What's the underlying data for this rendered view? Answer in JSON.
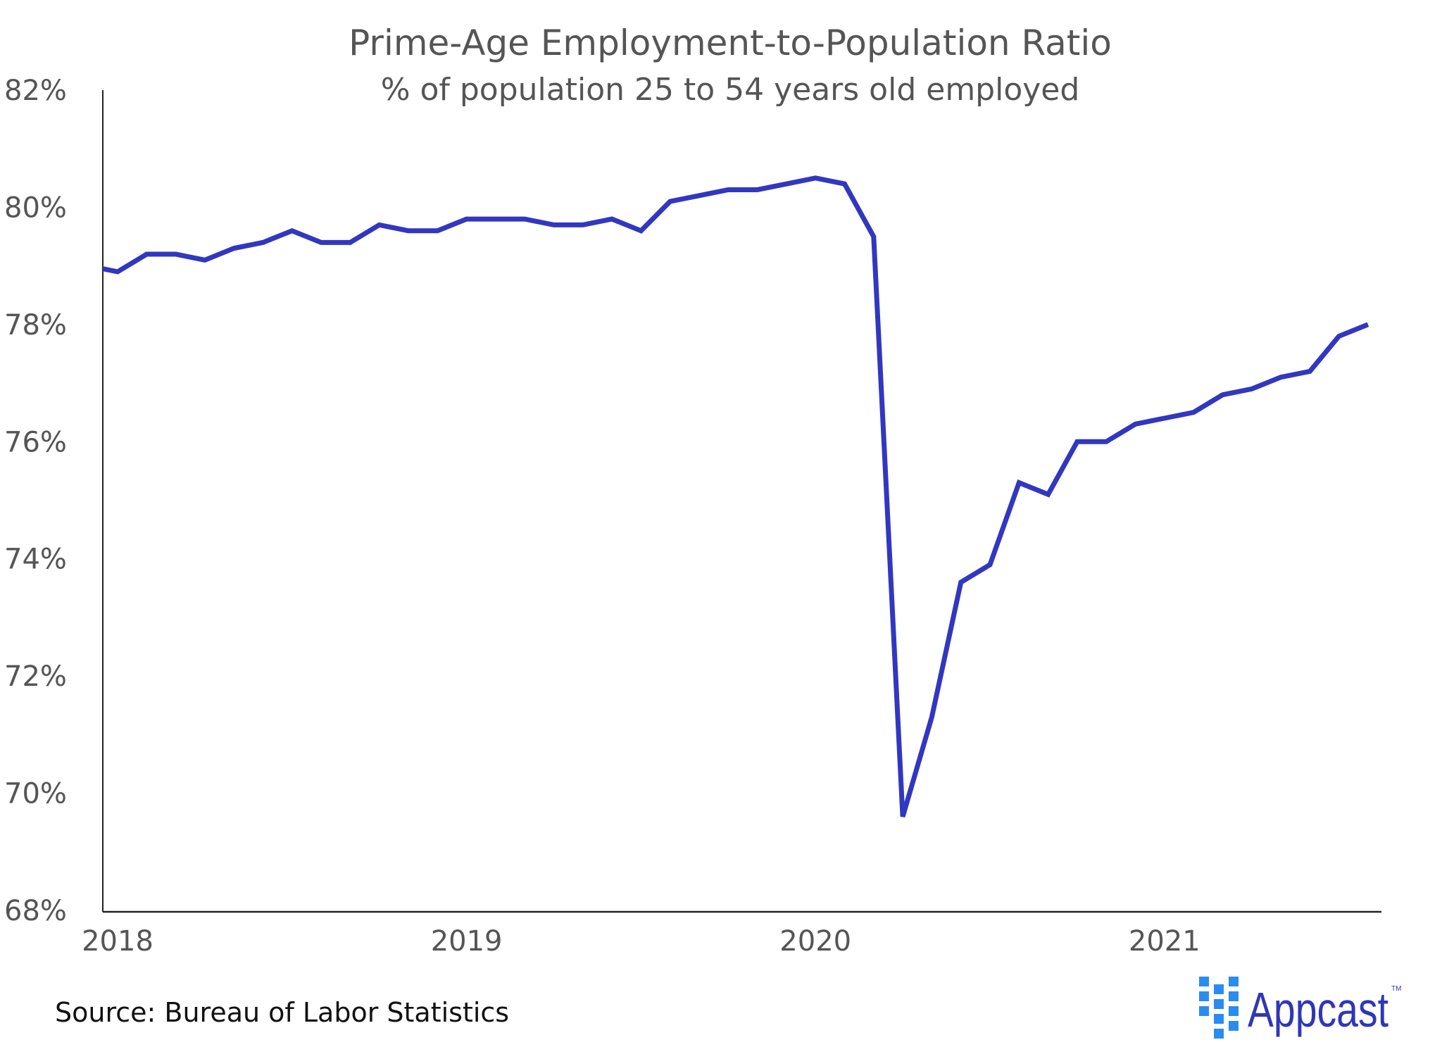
{
  "chart_data": {
    "type": "line",
    "title": "Prime-Age Employment-to-Population Ratio",
    "subtitle": "% of population 25 to 54 years old employed",
    "xlabel": "",
    "ylabel": "",
    "ylim": [
      68,
      82
    ],
    "y_ticks": [
      "68%",
      "70%",
      "72%",
      "74%",
      "76%",
      "78%",
      "80%",
      "82%"
    ],
    "y_tick_values": [
      68,
      70,
      72,
      74,
      76,
      78,
      80,
      82
    ],
    "x_ticks": [
      "2018",
      "2019",
      "2020",
      "2021"
    ],
    "grid": false,
    "legend": "none",
    "line_color": "#3137c0",
    "series": [
      {
        "x": [
          "2017-12",
          "2018-01",
          "2018-02",
          "2018-03",
          "2018-04",
          "2018-05",
          "2018-06",
          "2018-07",
          "2018-08",
          "2018-09",
          "2018-10",
          "2018-11",
          "2018-12",
          "2019-01",
          "2019-02",
          "2019-03",
          "2019-04",
          "2019-05",
          "2019-06",
          "2019-07",
          "2019-08",
          "2019-09",
          "2019-10",
          "2019-11",
          "2019-12",
          "2020-01",
          "2020-02",
          "2020-03",
          "2020-04",
          "2020-05",
          "2020-06",
          "2020-07",
          "2020-08",
          "2020-09",
          "2020-10",
          "2020-11",
          "2020-12",
          "2021-01",
          "2021-02",
          "2021-03",
          "2021-04",
          "2021-05",
          "2021-06",
          "2021-07",
          "2021-08"
        ],
        "values": [
          79.0,
          78.9,
          79.2,
          79.2,
          79.1,
          79.3,
          79.4,
          79.6,
          79.4,
          79.4,
          79.7,
          79.6,
          79.6,
          79.8,
          79.8,
          79.8,
          79.7,
          79.7,
          79.8,
          79.6,
          80.1,
          80.2,
          80.3,
          80.3,
          80.4,
          80.5,
          80.4,
          79.5,
          69.6,
          71.3,
          73.6,
          73.9,
          75.3,
          75.1,
          76.0,
          76.0,
          76.3,
          76.4,
          76.5,
          76.8,
          76.9,
          77.1,
          77.2,
          77.8,
          78.0
        ]
      }
    ]
  },
  "source": "Source: Bureau of Labor Statistics",
  "logo": {
    "text": "Appcast",
    "trademark": "TM",
    "colors": {
      "text": "#3036b8",
      "squares": "#2a8cf0"
    }
  }
}
